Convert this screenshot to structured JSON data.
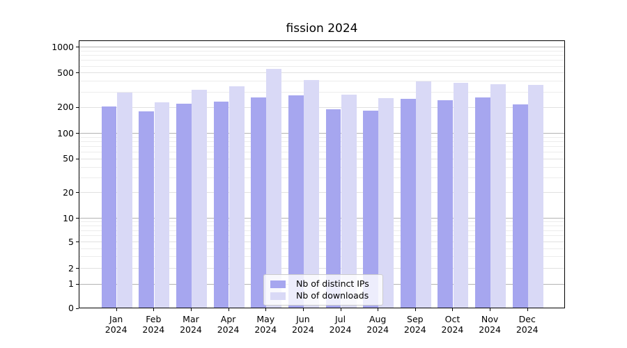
{
  "title": "fission 2024",
  "colors": {
    "distinct_ips_bar": "#a6a6ef",
    "downloads_bar": "#d9d9f6",
    "grid_major": "#b3b3b3",
    "grid_labeled_minor": "#e0e0e0",
    "grid_minor": "#ececec",
    "axis": "#000000",
    "legend_border": "#cccccc"
  },
  "legend": {
    "items": [
      {
        "label": "Nb of distinct IPs",
        "color_key": "distinct_ips_bar"
      },
      {
        "label": "Nb of downloads",
        "color_key": "downloads_bar"
      }
    ]
  },
  "chart_data": {
    "type": "bar",
    "title": "fission 2024",
    "categories": [
      "Jan",
      "Feb",
      "Mar",
      "Apr",
      "May",
      "Jun",
      "Jul",
      "Aug",
      "Sep",
      "Oct",
      "Nov",
      "Dec"
    ],
    "year": "2024",
    "series": [
      {
        "name": "Nb of distinct IPs",
        "values": [
          205,
          182,
          224,
          235,
          265,
          279,
          191,
          183,
          254,
          242,
          265,
          220
        ]
      },
      {
        "name": "Nb of downloads",
        "values": [
          300,
          230,
          322,
          352,
          560,
          415,
          282,
          258,
          405,
          387,
          375,
          370
        ]
      }
    ],
    "xlabel": "",
    "ylabel": "",
    "yscale": "symlog",
    "yticks": [
      0,
      1,
      2,
      5,
      10,
      20,
      50,
      100,
      200,
      500,
      1000
    ],
    "minor_yticks": [
      3,
      4,
      6,
      7,
      8,
      9,
      30,
      40,
      60,
      70,
      80,
      90,
      300,
      400,
      600,
      700,
      800,
      900
    ],
    "ylim": [
      0,
      1230
    ],
    "grid": true,
    "legend_position": "lower center"
  }
}
